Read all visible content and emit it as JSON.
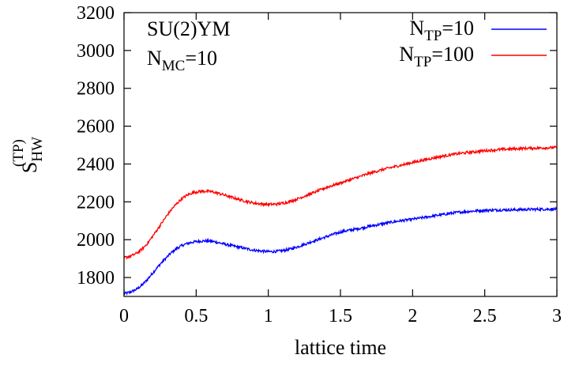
{
  "chart_data": {
    "type": "line",
    "title": "",
    "xlabel": "lattice time",
    "ylabel": {
      "main": "S",
      "sup": "(TP)",
      "sub": "HW"
    },
    "xlim": [
      0,
      3
    ],
    "ylim": [
      1700,
      3200
    ],
    "xticks": [
      0,
      0.5,
      1,
      1.5,
      2,
      2.5,
      3
    ],
    "xtick_labels": [
      "0",
      "0.5",
      "1",
      "1.5",
      "2",
      "2.5",
      "3"
    ],
    "yticks": [
      1800,
      2000,
      2200,
      2400,
      2600,
      2800,
      3000,
      3200
    ],
    "ytick_labels": [
      "1800",
      "2000",
      "2200",
      "2400",
      "2600",
      "2800",
      "3000",
      "3200"
    ],
    "grid": false,
    "legend_position": "top-right",
    "annotations": [
      {
        "main": "SU(2)YM",
        "sub": ""
      },
      {
        "main": "N",
        "sub": "MC",
        "suffix": "=10"
      }
    ],
    "series": [
      {
        "name": {
          "main": "N",
          "sub": "TP",
          "suffix": "=10"
        },
        "color": "#0000ff",
        "x": [
          0,
          0.05,
          0.1,
          0.15,
          0.2,
          0.25,
          0.3,
          0.35,
          0.4,
          0.45,
          0.5,
          0.55,
          0.6,
          0.65,
          0.7,
          0.75,
          0.8,
          0.85,
          0.9,
          0.95,
          1.0,
          1.05,
          1.1,
          1.15,
          1.2,
          1.25,
          1.3,
          1.4,
          1.5,
          1.6,
          1.7,
          1.8,
          1.9,
          2.0,
          2.1,
          2.2,
          2.3,
          2.4,
          2.5,
          2.6,
          2.7,
          2.8,
          2.9,
          3.0
        ],
        "y": [
          1715,
          1725,
          1745,
          1780,
          1825,
          1870,
          1910,
          1945,
          1968,
          1982,
          1990,
          1993,
          1992,
          1985,
          1976,
          1968,
          1960,
          1952,
          1945,
          1940,
          1937,
          1938,
          1942,
          1950,
          1962,
          1975,
          1990,
          2015,
          2040,
          2055,
          2070,
          2085,
          2098,
          2108,
          2120,
          2132,
          2143,
          2150,
          2155,
          2157,
          2158,
          2160,
          2161,
          2162
        ]
      },
      {
        "name": {
          "main": "N",
          "sub": "TP",
          "suffix": "=100"
        },
        "color": "#ff0000",
        "x": [
          0,
          0.05,
          0.1,
          0.15,
          0.2,
          0.25,
          0.3,
          0.35,
          0.4,
          0.45,
          0.5,
          0.55,
          0.6,
          0.65,
          0.7,
          0.75,
          0.8,
          0.85,
          0.9,
          0.95,
          1.0,
          1.05,
          1.1,
          1.15,
          1.2,
          1.25,
          1.3,
          1.4,
          1.5,
          1.6,
          1.7,
          1.8,
          1.9,
          2.0,
          2.1,
          2.2,
          2.3,
          2.4,
          2.5,
          2.6,
          2.7,
          2.8,
          2.9,
          3.0
        ],
        "y": [
          1905,
          1915,
          1935,
          1970,
          2020,
          2075,
          2130,
          2178,
          2215,
          2240,
          2252,
          2256,
          2254,
          2246,
          2235,
          2223,
          2212,
          2202,
          2194,
          2189,
          2187,
          2188,
          2193,
          2202,
          2215,
          2230,
          2245,
          2275,
          2300,
          2325,
          2350,
          2372,
          2390,
          2408,
          2425,
          2440,
          2453,
          2462,
          2470,
          2476,
          2480,
          2483,
          2485,
          2487
        ]
      }
    ]
  }
}
